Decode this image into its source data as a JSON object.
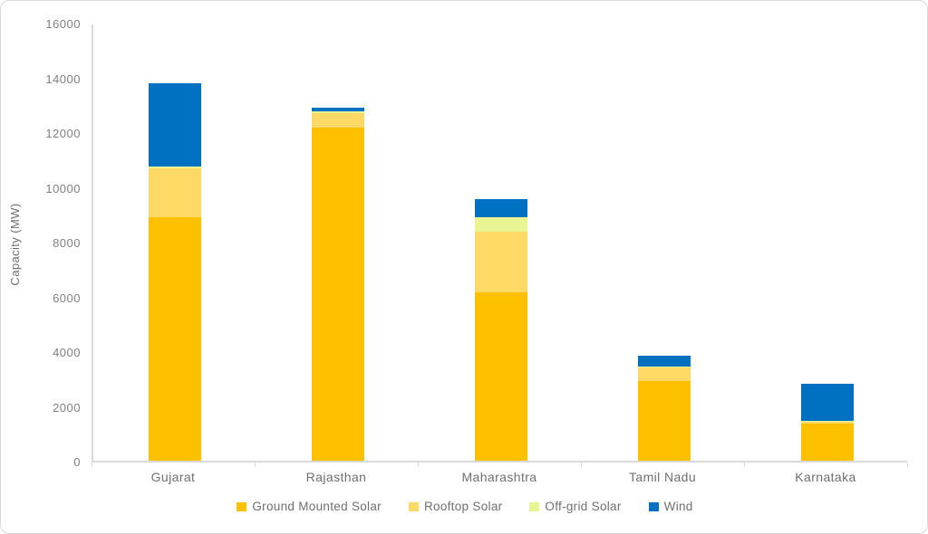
{
  "chart_data": {
    "type": "bar",
    "stacked": true,
    "title": "",
    "xlabel": "",
    "ylabel": "Capacity (MW)",
    "ylim": [
      0,
      16000
    ],
    "yticks": [
      0,
      2000,
      4000,
      6000,
      8000,
      10000,
      12000,
      14000,
      16000
    ],
    "grid": false,
    "legend_position": "bottom",
    "categories": [
      "Gujarat",
      "Rajasthan",
      "Maharashtra",
      "Tamil Nadu",
      "Karnataka"
    ],
    "series": [
      {
        "name": "Ground Mounted Solar",
        "color": "#FFC000",
        "values": [
          8900,
          12150,
          6150,
          2900,
          1350
        ]
      },
      {
        "name": "Rooftop Solar",
        "color": "#FFD966",
        "values": [
          1780,
          550,
          2200,
          500,
          60
        ]
      },
      {
        "name": "Off-grid Solar",
        "color": "#E9F593",
        "values": [
          70,
          50,
          550,
          30,
          30
        ]
      },
      {
        "name": "Wind",
        "color": "#0070C0",
        "values": [
          3050,
          150,
          650,
          400,
          1360
        ]
      }
    ],
    "totals": [
      13800,
      12900,
      9550,
      3830,
      2800
    ],
    "axis_color": "#D9D9D9",
    "text_color": "#808080"
  }
}
